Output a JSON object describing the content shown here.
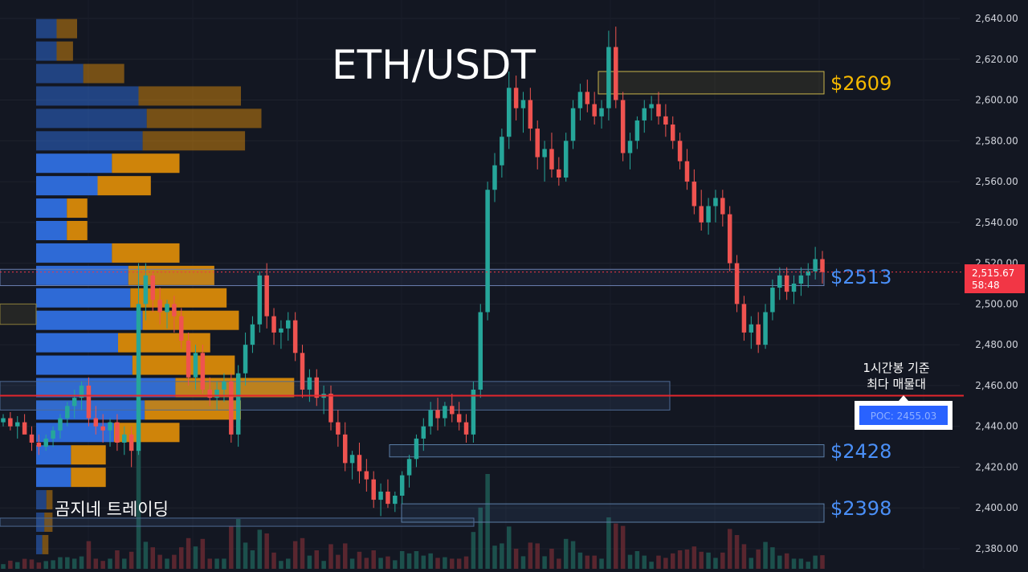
{
  "chart_data": {
    "type": "candlestick",
    "title": "ETH/USDT",
    "watermark": "곰지네 트레이딩",
    "yaxis": {
      "range": [
        2372,
        2645
      ],
      "ticks": [
        "2,640.00",
        "2,620.00",
        "2,600.00",
        "2,580.00",
        "2,560.00",
        "2,540.00",
        "2,520.00",
        "2,500.00",
        "2,480.00",
        "2,460.00",
        "2,440.00",
        "2,420.00",
        "2,400.00",
        "2,380.00"
      ],
      "tick_values": [
        2640,
        2620,
        2600,
        2580,
        2560,
        2540,
        2520,
        2500,
        2480,
        2460,
        2440,
        2420,
        2400,
        2380
      ]
    },
    "current_price": {
      "label": "2,515.67",
      "countdown": "58:48",
      "value": 2515.67,
      "color": "#f23645"
    },
    "poc": {
      "value": 2455.03,
      "label": "POC: 2455.03",
      "note_line1": "1시간봉 기준",
      "note_line2": "최다 매물대"
    },
    "levels": [
      {
        "label": "$2609",
        "value": 2609,
        "color": "#f5b800"
      },
      {
        "label": "$2513",
        "value": 2513,
        "color": "#4a8ff7"
      },
      {
        "label": "$2428",
        "value": 2428,
        "color": "#4a8ff7"
      },
      {
        "label": "$2398",
        "value": 2398,
        "color": "#4a8ff7"
      }
    ],
    "colors": {
      "up": "#26a69a",
      "down": "#ef5350",
      "background": "#131722",
      "profile_buy": "#2f6fe0",
      "profile_sell": "#d98a0a",
      "poc_line": "#e3262c"
    },
    "volume_profile": [
      {
        "price": 2635,
        "buy": 10,
        "sell": 10,
        "faded": true
      },
      {
        "price": 2624,
        "buy": 10,
        "sell": 8,
        "faded": true
      },
      {
        "price": 2613,
        "buy": 23,
        "sell": 20,
        "faded": true
      },
      {
        "price": 2602,
        "buy": 50,
        "sell": 50,
        "faded": true
      },
      {
        "price": 2591,
        "buy": 54,
        "sell": 56,
        "faded": true
      },
      {
        "price": 2580,
        "buy": 52,
        "sell": 50,
        "faded": true
      },
      {
        "price": 2569,
        "buy": 37,
        "sell": 33
      },
      {
        "price": 2558,
        "buy": 30,
        "sell": 26
      },
      {
        "price": 2547,
        "buy": 15,
        "sell": 10
      },
      {
        "price": 2536,
        "buy": 15,
        "sell": 10
      },
      {
        "price": 2525,
        "buy": 37,
        "sell": 33
      },
      {
        "price": 2514,
        "buy": 45,
        "sell": 42
      },
      {
        "price": 2503,
        "buy": 46,
        "sell": 47
      },
      {
        "price": 2492,
        "buy": 52,
        "sell": 47
      },
      {
        "price": 2481,
        "buy": 40,
        "sell": 45
      },
      {
        "price": 2470,
        "buy": 47,
        "sell": 50
      },
      {
        "price": 2459,
        "buy": 68,
        "sell": 58
      },
      {
        "price": 2448,
        "buy": 53,
        "sell": 47
      },
      {
        "price": 2437,
        "buy": 38,
        "sell": 32
      },
      {
        "price": 2426,
        "buy": 17,
        "sell": 17
      },
      {
        "price": 2415,
        "buy": 17,
        "sell": 17
      },
      {
        "price": 2404,
        "buy": 5,
        "sell": 3,
        "faded": true
      },
      {
        "price": 2393,
        "buy": 4,
        "sell": 4,
        "faded": true
      },
      {
        "price": 2382,
        "buy": 3,
        "sell": 3,
        "faded": true
      }
    ],
    "candles": [
      [
        2442,
        2446,
        2440,
        2444
      ],
      [
        2444,
        2447,
        2438,
        2440
      ],
      [
        2440,
        2445,
        2434,
        2442
      ],
      [
        2442,
        2446,
        2438,
        2436
      ],
      [
        2436,
        2440,
        2428,
        2432
      ],
      [
        2432,
        2436,
        2426,
        2430
      ],
      [
        2430,
        2436,
        2428,
        2434
      ],
      [
        2434,
        2440,
        2430,
        2438
      ],
      [
        2438,
        2446,
        2434,
        2444
      ],
      [
        2444,
        2452,
        2440,
        2450
      ],
      [
        2450,
        2458,
        2444,
        2454
      ],
      [
        2454,
        2462,
        2448,
        2460
      ],
      [
        2460,
        2464,
        2440,
        2444
      ],
      [
        2444,
        2450,
        2436,
        2440
      ],
      [
        2440,
        2446,
        2432,
        2438
      ],
      [
        2438,
        2444,
        2430,
        2442
      ],
      [
        2442,
        2446,
        2428,
        2432
      ],
      [
        2432,
        2440,
        2426,
        2436
      ],
      [
        2436,
        2440,
        2420,
        2428
      ],
      [
        2428,
        2520,
        2426,
        2500
      ],
      [
        2500,
        2520,
        2492,
        2514
      ],
      [
        2514,
        2516,
        2496,
        2502
      ],
      [
        2502,
        2508,
        2490,
        2496
      ],
      [
        2496,
        2502,
        2488,
        2500
      ],
      [
        2500,
        2504,
        2486,
        2494
      ],
      [
        2494,
        2498,
        2478,
        2482
      ],
      [
        2482,
        2486,
        2460,
        2464
      ],
      [
        2464,
        2480,
        2458,
        2476
      ],
      [
        2476,
        2480,
        2456,
        2458
      ],
      [
        2458,
        2464,
        2450,
        2454
      ],
      [
        2454,
        2462,
        2448,
        2458
      ],
      [
        2458,
        2466,
        2452,
        2462
      ],
      [
        2462,
        2466,
        2432,
        2436
      ],
      [
        2436,
        2470,
        2430,
        2466
      ],
      [
        2466,
        2486,
        2460,
        2480
      ],
      [
        2480,
        2494,
        2476,
        2490
      ],
      [
        2490,
        2516,
        2486,
        2514
      ],
      [
        2514,
        2520,
        2488,
        2494
      ],
      [
        2494,
        2498,
        2480,
        2486
      ],
      [
        2486,
        2492,
        2478,
        2488
      ],
      [
        2488,
        2496,
        2482,
        2492
      ],
      [
        2492,
        2496,
        2472,
        2476
      ],
      [
        2476,
        2480,
        2454,
        2458
      ],
      [
        2458,
        2468,
        2452,
        2464
      ],
      [
        2464,
        2468,
        2450,
        2454
      ],
      [
        2454,
        2460,
        2446,
        2456
      ],
      [
        2456,
        2460,
        2438,
        2442
      ],
      [
        2442,
        2448,
        2430,
        2436
      ],
      [
        2436,
        2442,
        2418,
        2422
      ],
      [
        2422,
        2428,
        2414,
        2426
      ],
      [
        2426,
        2432,
        2412,
        2418
      ],
      [
        2418,
        2424,
        2408,
        2414
      ],
      [
        2414,
        2418,
        2400,
        2404
      ],
      [
        2404,
        2412,
        2396,
        2408
      ],
      [
        2408,
        2414,
        2400,
        2402
      ],
      [
        2402,
        2408,
        2398,
        2406
      ],
      [
        2406,
        2418,
        2402,
        2416
      ],
      [
        2416,
        2426,
        2410,
        2424
      ],
      [
        2424,
        2436,
        2420,
        2434
      ],
      [
        2434,
        2444,
        2428,
        2440
      ],
      [
        2440,
        2452,
        2436,
        2448
      ],
      [
        2448,
        2454,
        2438,
        2444
      ],
      [
        2444,
        2452,
        2440,
        2450
      ],
      [
        2450,
        2456,
        2442,
        2446
      ],
      [
        2446,
        2452,
        2438,
        2442
      ],
      [
        2442,
        2446,
        2432,
        2436
      ],
      [
        2436,
        2462,
        2432,
        2458
      ],
      [
        2458,
        2500,
        2454,
        2496
      ],
      [
        2496,
        2560,
        2492,
        2556
      ],
      [
        2556,
        2574,
        2550,
        2568
      ],
      [
        2568,
        2586,
        2562,
        2582
      ],
      [
        2582,
        2614,
        2576,
        2606
      ],
      [
        2606,
        2612,
        2590,
        2596
      ],
      [
        2596,
        2604,
        2584,
        2600
      ],
      [
        2600,
        2606,
        2580,
        2586
      ],
      [
        2586,
        2590,
        2566,
        2572
      ],
      [
        2572,
        2580,
        2560,
        2576
      ],
      [
        2576,
        2584,
        2562,
        2566
      ],
      [
        2566,
        2572,
        2558,
        2562
      ],
      [
        2562,
        2584,
        2560,
        2580
      ],
      [
        2580,
        2600,
        2576,
        2596
      ],
      [
        2596,
        2608,
        2590,
        2604
      ],
      [
        2604,
        2610,
        2594,
        2598
      ],
      [
        2598,
        2604,
        2588,
        2592
      ],
      [
        2592,
        2600,
        2586,
        2596
      ],
      [
        2596,
        2634,
        2590,
        2626
      ],
      [
        2626,
        2636,
        2596,
        2600
      ],
      [
        2600,
        2604,
        2570,
        2574
      ],
      [
        2574,
        2584,
        2566,
        2580
      ],
      [
        2580,
        2592,
        2576,
        2590
      ],
      [
        2590,
        2600,
        2584,
        2596
      ],
      [
        2596,
        2602,
        2590,
        2598
      ],
      [
        2598,
        2604,
        2588,
        2592
      ],
      [
        2592,
        2598,
        2582,
        2588
      ],
      [
        2588,
        2592,
        2576,
        2580
      ],
      [
        2580,
        2584,
        2566,
        2570
      ],
      [
        2570,
        2576,
        2556,
        2560
      ],
      [
        2560,
        2566,
        2544,
        2548
      ],
      [
        2548,
        2556,
        2536,
        2540
      ],
      [
        2540,
        2552,
        2534,
        2548
      ],
      [
        2548,
        2556,
        2540,
        2552
      ],
      [
        2552,
        2556,
        2538,
        2544
      ],
      [
        2544,
        2548,
        2516,
        2520
      ],
      [
        2520,
        2524,
        2496,
        2500
      ],
      [
        2500,
        2504,
        2482,
        2486
      ],
      [
        2486,
        2494,
        2478,
        2490
      ],
      [
        2490,
        2496,
        2476,
        2480
      ],
      [
        2480,
        2500,
        2478,
        2496
      ],
      [
        2496,
        2512,
        2492,
        2508
      ],
      [
        2508,
        2518,
        2502,
        2514
      ],
      [
        2514,
        2518,
        2502,
        2506
      ],
      [
        2506,
        2514,
        2500,
        2510
      ],
      [
        2510,
        2518,
        2504,
        2514
      ],
      [
        2514,
        2520,
        2508,
        2516
      ],
      [
        2516,
        2528,
        2512,
        2522
      ],
      [
        2522,
        2526,
        2510,
        2515.67
      ]
    ]
  }
}
